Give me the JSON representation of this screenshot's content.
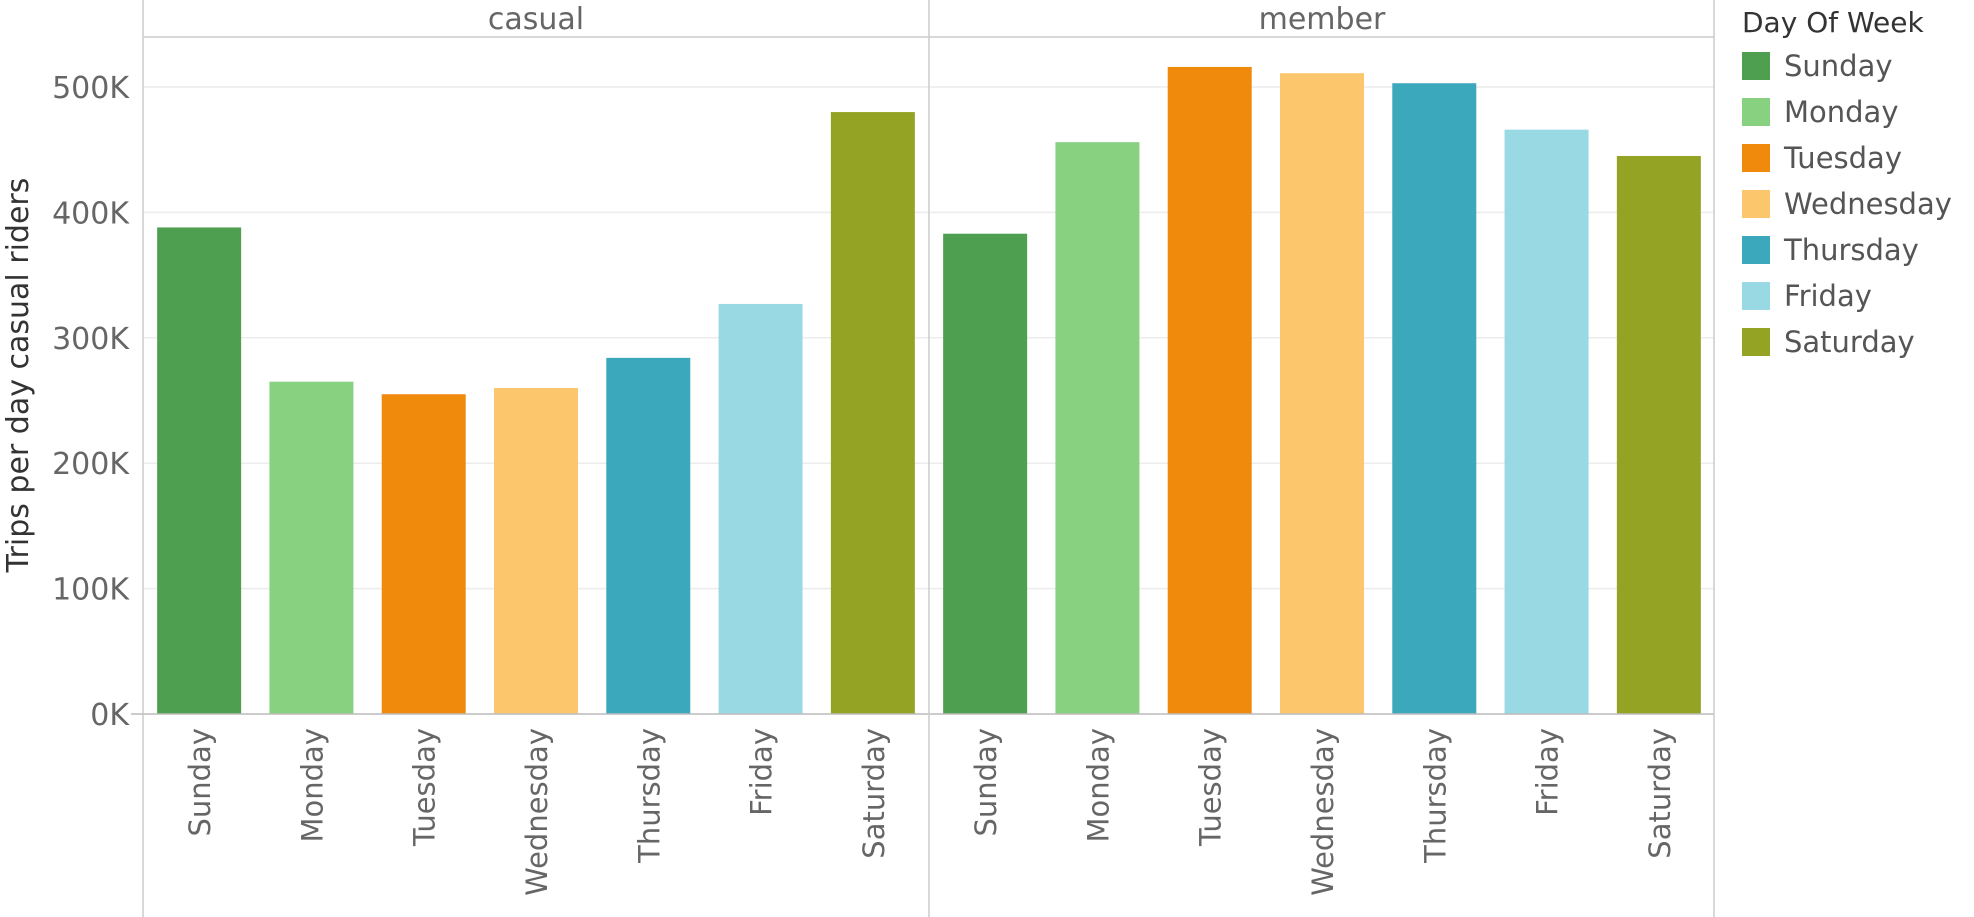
{
  "chart_data": {
    "type": "bar",
    "ylabel": "Trips per day casual riders",
    "y_ticks": [
      "0K",
      "100K",
      "200K",
      "300K",
      "400K",
      "500K"
    ],
    "ylim": [
      0,
      540000
    ],
    "grid": true,
    "legend_position": "right",
    "categories": [
      "Sunday",
      "Monday",
      "Tuesday",
      "Wednesday",
      "Thursday",
      "Friday",
      "Saturday"
    ],
    "colors": [
      "#4e9f50",
      "#87d180",
      "#ef8a0c",
      "#fcc66d",
      "#3ca8bc",
      "#98d9e4",
      "#94a323"
    ],
    "panels": [
      {
        "name": "casual",
        "values": [
          388000,
          265000,
          255000,
          260000,
          284000,
          327000,
          480000
        ]
      },
      {
        "name": "member",
        "values": [
          383000,
          456000,
          516000,
          511000,
          503000,
          466000,
          445000
        ]
      }
    ]
  },
  "legend": {
    "title": "Day Of Week",
    "items": [
      "Sunday",
      "Monday",
      "Tuesday",
      "Wednesday",
      "Thursday",
      "Friday",
      "Saturday"
    ]
  }
}
